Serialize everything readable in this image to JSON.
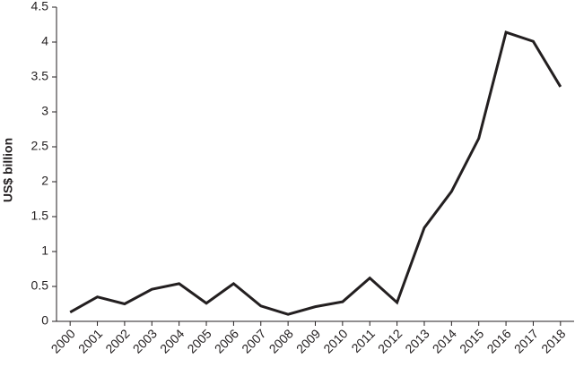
{
  "chart_data": {
    "type": "line",
    "ylabel": "US$ billion",
    "categories": [
      "2000",
      "2001",
      "2002",
      "2003",
      "2004",
      "2005",
      "2006",
      "2007",
      "2008",
      "2009",
      "2010",
      "2011",
      "2012",
      "2013",
      "2014",
      "2015",
      "2016",
      "2017",
      "2018"
    ],
    "values": [
      0.13,
      0.35,
      0.25,
      0.46,
      0.54,
      0.26,
      0.54,
      0.22,
      0.1,
      0.21,
      0.28,
      0.62,
      0.27,
      1.34,
      1.86,
      2.62,
      4.14,
      4.01,
      3.36
    ],
    "color": "#231f20",
    "ylim": [
      0,
      4.5
    ],
    "yticks": [
      0,
      0.5,
      1,
      1.5,
      2,
      2.5,
      3,
      3.5,
      4,
      4.5
    ],
    "grid": false
  }
}
